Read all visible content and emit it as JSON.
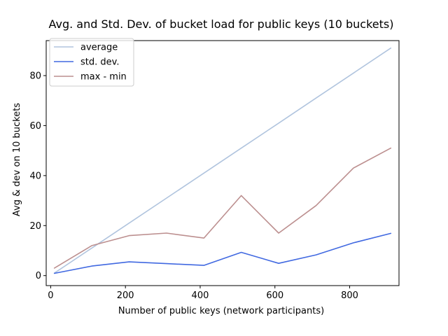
{
  "chart_data": {
    "type": "line",
    "title": "Avg. and Std. Dev. of bucket load for public keys (10 buckets)",
    "xlabel": "Number of public keys (network participants)",
    "ylabel": "Avg & dev on 10 buckets",
    "x": [
      10,
      110,
      210,
      310,
      410,
      510,
      610,
      710,
      810,
      910
    ],
    "xlim": [
      -12,
      932
    ],
    "ylim": [
      -4,
      94
    ],
    "xticks": [
      0,
      200,
      400,
      600,
      800
    ],
    "yticks": [
      0,
      20,
      40,
      60,
      80
    ],
    "grid": false,
    "legend_position": "top-left",
    "series": [
      {
        "name": "average",
        "color": "#b0c4de",
        "values": [
          1,
          11,
          21,
          31,
          41,
          51,
          61,
          71,
          81,
          91
        ]
      },
      {
        "name": "std. dev.",
        "color": "#4169e1",
        "values": [
          0.9,
          3.8,
          5.5,
          4.8,
          4.1,
          9.3,
          4.9,
          8.3,
          13.1,
          16.9
        ]
      },
      {
        "name": "max - min",
        "color": "#bc8f8f",
        "values": [
          3,
          12,
          16,
          17,
          15,
          32,
          17,
          28,
          43,
          51
        ]
      }
    ]
  }
}
